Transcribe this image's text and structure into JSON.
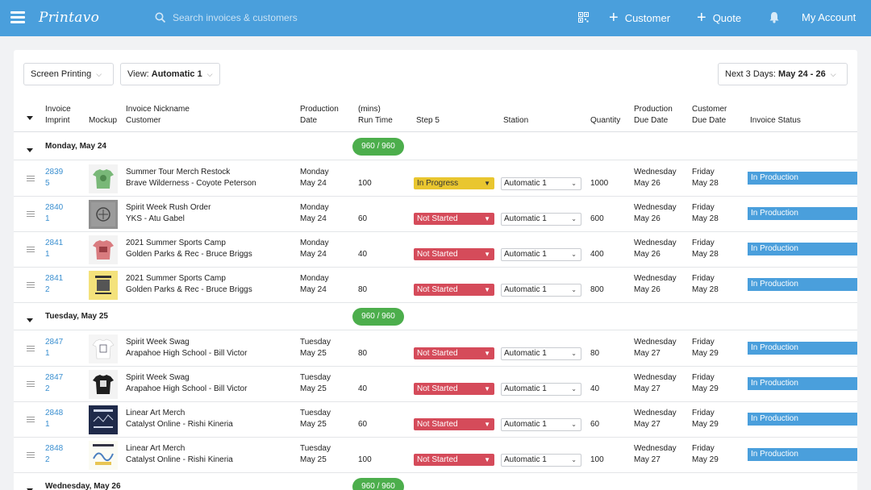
{
  "topbar": {
    "logo": "Printavo",
    "search_placeholder": "Search invoices & customers",
    "customer_label": "Customer",
    "quote_label": "Quote",
    "account_label": "My Account",
    "bg_color": "#4a9fdc"
  },
  "filters": {
    "process": "Screen Printing",
    "view_prefix": "View:",
    "view_value": "Automatic 1",
    "range_prefix": "Next 3 Days:",
    "range_value": "May 24 - 26"
  },
  "columns": {
    "invoice": "Invoice",
    "imprint": "Imprint",
    "mockup": "Mockup",
    "nickname": "Invoice Nickname",
    "customer": "Customer",
    "production": "Production",
    "date": "Date",
    "mins": "(mins)",
    "run_time": "Run Time",
    "step": "Step 5",
    "station": "Station",
    "quantity": "Quantity",
    "prod_due_1": "Production",
    "prod_due_2": "Due Date",
    "cust_due_1": "Customer",
    "cust_due_2": "Due Date",
    "status": "Invoice Status"
  },
  "groups": [
    {
      "title": "Monday, May 24",
      "capacity": "960 / 960",
      "rows": [
        {
          "inv1": "2839",
          "inv2": "5",
          "nick": "Summer Tour Merch Restock",
          "cust": "Brave Wilderness - Coyote Peterson",
          "pd1": "Monday",
          "pd2": "May 24",
          "run": "100",
          "step": "In Progress",
          "station": "Automatic 1",
          "qty": "1000",
          "pdue1": "Wednesday",
          "pdue2": "May 26",
          "cdue1": "Friday",
          "cdue2": "May 28",
          "status": "In Production"
        },
        {
          "inv1": "2840",
          "inv2": "1",
          "nick": "Spirit Week Rush Order",
          "cust": "YKS - Atu Gabel",
          "pd1": "Monday",
          "pd2": "May 24",
          "run": "60",
          "step": "Not Started",
          "station": "Automatic 1",
          "qty": "600",
          "pdue1": "Wednesday",
          "pdue2": "May 26",
          "cdue1": "Friday",
          "cdue2": "May 28",
          "status": "In Production"
        },
        {
          "inv1": "2841",
          "inv2": "1",
          "nick": "2021 Summer Sports Camp",
          "cust": "Golden Parks & Rec - Bruce Briggs",
          "pd1": "Monday",
          "pd2": "May 24",
          "run": "40",
          "step": "Not Started",
          "station": "Automatic 1",
          "qty": "400",
          "pdue1": "Wednesday",
          "pdue2": "May 26",
          "cdue1": "Friday",
          "cdue2": "May 28",
          "status": "In Production"
        },
        {
          "inv1": "2841",
          "inv2": "2",
          "nick": "2021 Summer Sports Camp",
          "cust": "Golden Parks & Rec - Bruce Briggs",
          "pd1": "Monday",
          "pd2": "May 24",
          "run": "80",
          "step": "Not Started",
          "station": "Automatic 1",
          "qty": "800",
          "pdue1": "Wednesday",
          "pdue2": "May 26",
          "cdue1": "Friday",
          "cdue2": "May 28",
          "status": "In Production"
        }
      ]
    },
    {
      "title": "Tuesday, May 25",
      "capacity": "960 / 960",
      "rows": [
        {
          "inv1": "2847",
          "inv2": "1",
          "nick": "Spirit Week Swag",
          "cust": "Arapahoe High School - Bill Victor",
          "pd1": "Tuesday",
          "pd2": "May 25",
          "run": "80",
          "step": "Not Started",
          "station": "Automatic 1",
          "qty": "80",
          "pdue1": "Wednesday",
          "pdue2": "May 27",
          "cdue1": "Friday",
          "cdue2": "May 29",
          "status": "In Production"
        },
        {
          "inv1": "2847",
          "inv2": "2",
          "nick": "Spirit Week Swag",
          "cust": "Arapahoe High School - Bill Victor",
          "pd1": "Tuesday",
          "pd2": "May 25",
          "run": "40",
          "step": "Not Started",
          "station": "Automatic 1",
          "qty": "40",
          "pdue1": "Wednesday",
          "pdue2": "May 27",
          "cdue1": "Friday",
          "cdue2": "May 29",
          "status": "In Production"
        },
        {
          "inv1": "2848",
          "inv2": "1",
          "nick": "Linear Art Merch",
          "cust": "Catalyst Online - Rishi Kineria",
          "pd1": "Tuesday",
          "pd2": "May 25",
          "run": "60",
          "step": "Not Started",
          "station": "Automatic 1",
          "qty": "60",
          "pdue1": "Wednesday",
          "pdue2": "May 27",
          "cdue1": "Friday",
          "cdue2": "May 29",
          "status": "In Production"
        },
        {
          "inv1": "2848",
          "inv2": "2",
          "nick": "Linear Art Merch",
          "cust": "Catalyst Online - Rishi Kineria",
          "pd1": "Tuesday",
          "pd2": "May 25",
          "run": "100",
          "step": "Not Started",
          "station": "Automatic 1",
          "qty": "100",
          "pdue1": "Wednesday",
          "pdue2": "May 27",
          "cdue1": "Friday",
          "cdue2": "May 29",
          "status": "In Production"
        }
      ]
    },
    {
      "title": "Wednesday, May 26",
      "capacity": "960 / 960",
      "rows": []
    }
  ]
}
